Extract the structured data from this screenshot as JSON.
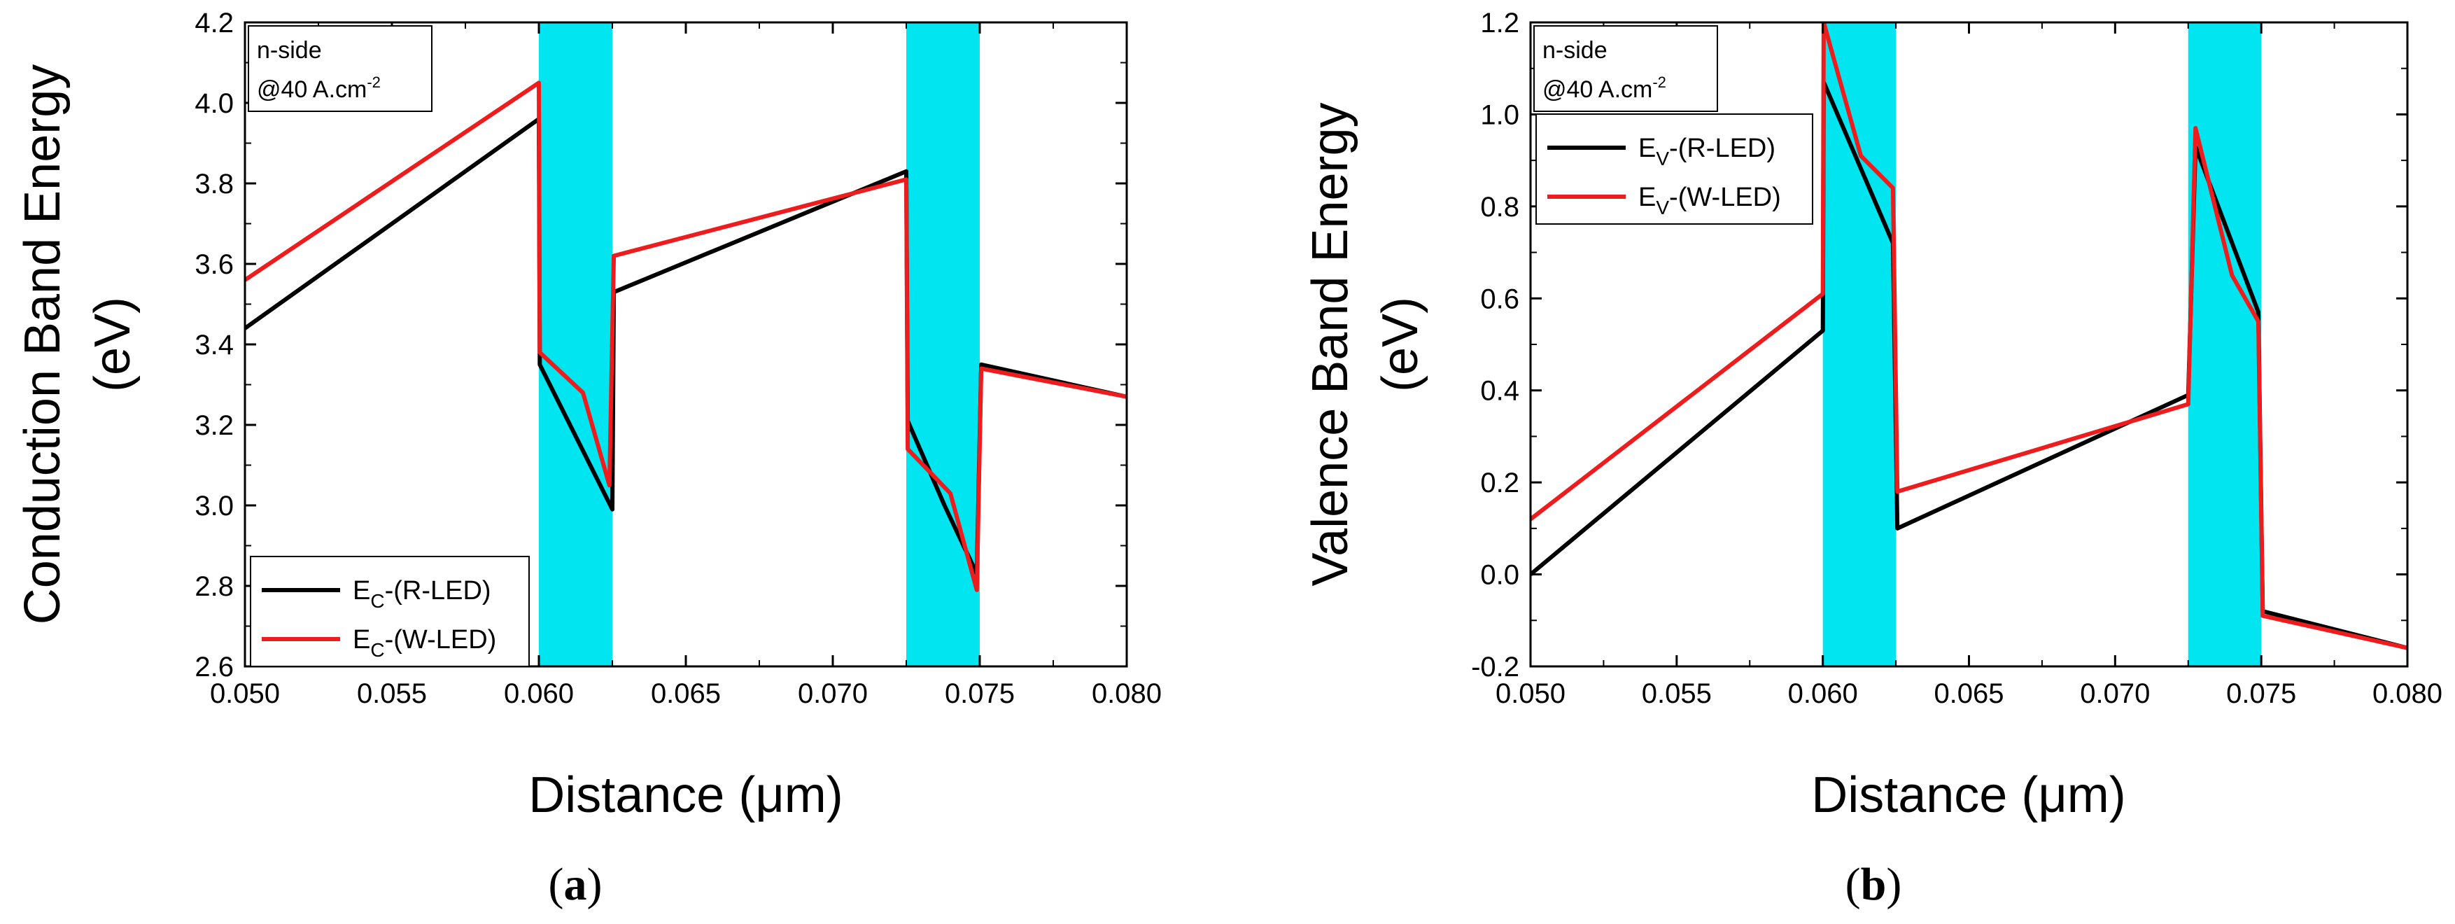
{
  "colors": {
    "band": "#00e5ef",
    "series_r": "#000000",
    "series_w": "#ee1c1c",
    "frame": "#000000"
  },
  "chart_data": [
    {
      "type": "line",
      "panel_label": "a",
      "xlabel": "Distance (μm)",
      "ylabel_line1": "Conduction Band Energy",
      "ylabel_line2": "(eV)",
      "xlim": [
        0.05,
        0.08
      ],
      "ylim": [
        2.6,
        4.2
      ],
      "xticks": [
        0.05,
        0.055,
        0.06,
        0.065,
        0.07,
        0.075,
        0.08
      ],
      "xtick_labels": [
        "0.050",
        "0.055",
        "0.060",
        "0.065",
        "0.070",
        "0.075",
        "0.080"
      ],
      "yticks": [
        2.6,
        2.8,
        3.0,
        3.2,
        3.4,
        3.6,
        3.8,
        4.0,
        4.2
      ],
      "ytick_labels": [
        "2.6",
        "2.8",
        "3.0",
        "3.2",
        "3.4",
        "3.6",
        "3.8",
        "4.0",
        "4.2"
      ],
      "shaded_regions": [
        [
          0.06,
          0.0625
        ],
        [
          0.0725,
          0.075
        ]
      ],
      "annotation": {
        "line1": "n-side",
        "line2_main": "@40 A.cm",
        "line2_sup": "-2",
        "position": "top-left"
      },
      "legend_position": "bottom-left",
      "series": [
        {
          "name": "EC-(R-LED)",
          "label_main": "E",
          "label_sub": "C",
          "label_rest": "-(R-LED)",
          "color_key": "series_r",
          "x": [
            0.05,
            0.06,
            0.06003,
            0.0625,
            0.06255,
            0.0725,
            0.07255,
            0.0738,
            0.0749,
            0.07505,
            0.08
          ],
          "y": [
            3.44,
            3.96,
            3.35,
            2.99,
            3.53,
            3.83,
            3.21,
            3.0,
            2.83,
            3.35,
            3.27
          ]
        },
        {
          "name": "EC-(W-LED)",
          "label_main": "E",
          "label_sub": "C",
          "label_rest": "-(W-LED)",
          "color_key": "series_w",
          "x": [
            0.05,
            0.06,
            0.06003,
            0.0615,
            0.0624,
            0.06255,
            0.0725,
            0.07255,
            0.074,
            0.0749,
            0.07505,
            0.08
          ],
          "y": [
            3.56,
            4.05,
            3.38,
            3.28,
            3.05,
            3.62,
            3.81,
            3.14,
            3.03,
            2.79,
            3.34,
            3.27
          ]
        }
      ]
    },
    {
      "type": "line",
      "panel_label": "b",
      "xlabel": "Distance (μm)",
      "ylabel_line1": "Valence Band Energy",
      "ylabel_line2": "(eV)",
      "xlim": [
        0.05,
        0.08
      ],
      "ylim": [
        -0.2,
        1.2
      ],
      "xticks": [
        0.05,
        0.055,
        0.06,
        0.065,
        0.07,
        0.075,
        0.08
      ],
      "xtick_labels": [
        "0.050",
        "0.055",
        "0.060",
        "0.065",
        "0.070",
        "0.075",
        "0.080"
      ],
      "yticks": [
        -0.2,
        0.0,
        0.2,
        0.4,
        0.6,
        0.8,
        1.0,
        1.2
      ],
      "ytick_labels": [
        "-0.2",
        "0.0",
        "0.2",
        "0.4",
        "0.6",
        "0.8",
        "1.0",
        "1.2"
      ],
      "shaded_regions": [
        [
          0.06,
          0.0625
        ],
        [
          0.0725,
          0.075
        ]
      ],
      "annotation": {
        "line1": "n-side",
        "line2_main": "@40 A.cm",
        "line2_sup": "-2",
        "position": "top-left"
      },
      "legend_position": "upper-left",
      "series": [
        {
          "name": "EV-(R-LED)",
          "label_main": "E",
          "label_sub": "V",
          "label_rest": "-(R-LED)",
          "color_key": "series_r",
          "x": [
            0.05,
            0.06,
            0.06003,
            0.0624,
            0.06255,
            0.0725,
            0.07275,
            0.0749,
            0.07505,
            0.08
          ],
          "y": [
            0.0,
            0.53,
            1.07,
            0.72,
            0.1,
            0.39,
            0.93,
            0.57,
            -0.08,
            -0.16
          ]
        },
        {
          "name": "EV-(W-LED)",
          "label_main": "E",
          "label_sub": "V",
          "label_rest": "-(W-LED)",
          "color_key": "series_w",
          "x": [
            0.05,
            0.06,
            0.06003,
            0.0613,
            0.0624,
            0.06255,
            0.0725,
            0.07275,
            0.074,
            0.0749,
            0.07505,
            0.08
          ],
          "y": [
            0.12,
            0.61,
            1.2,
            0.91,
            0.84,
            0.18,
            0.37,
            0.97,
            0.65,
            0.55,
            -0.09,
            -0.16
          ]
        }
      ]
    }
  ]
}
